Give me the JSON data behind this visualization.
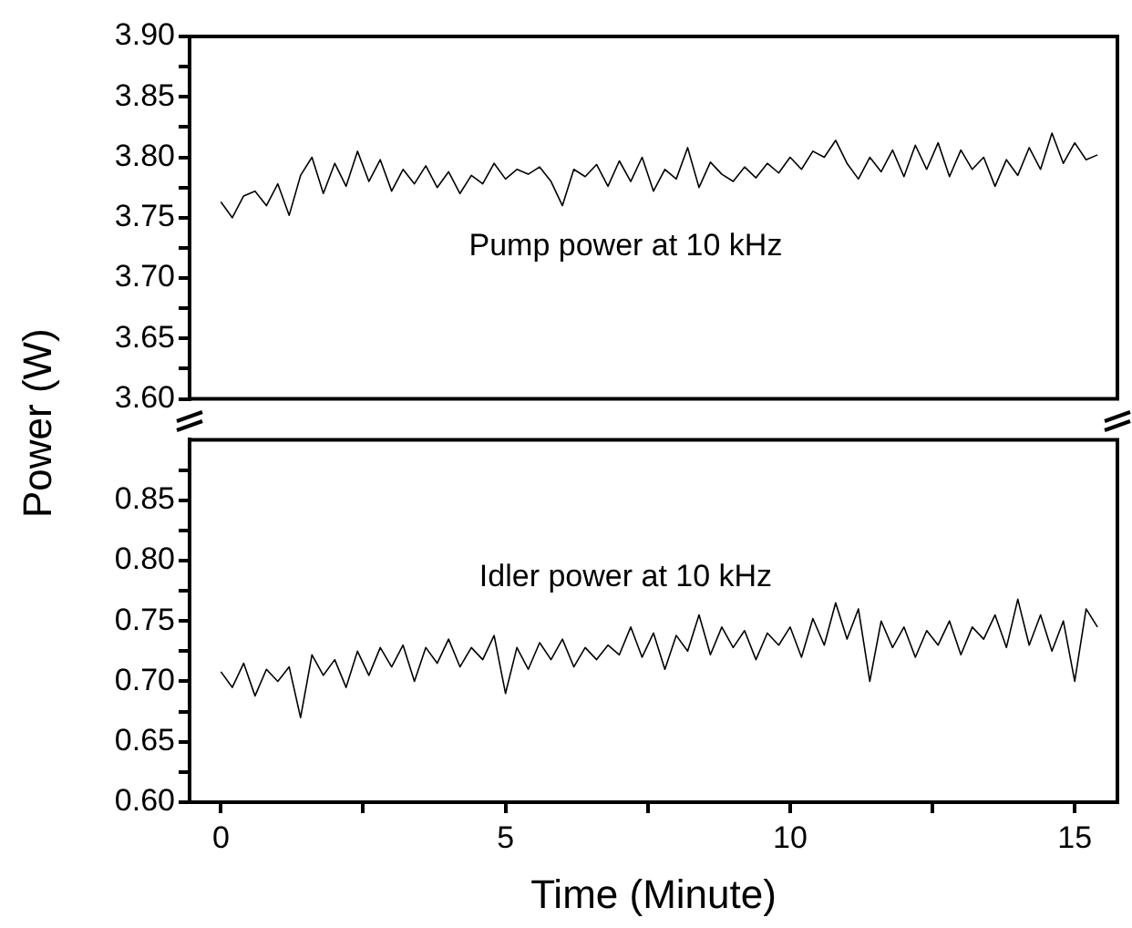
{
  "chart_data": [
    {
      "type": "line",
      "ylabel": "Power (W)",
      "xlim": [
        -0.55,
        15.75
      ],
      "ylim": [
        3.6,
        3.9
      ],
      "tick_labels": "y",
      "grid": false,
      "legend": false,
      "marker": "none",
      "line_style": "solid",
      "yticks": [
        {
          "value": 3.6,
          "label": "3.60"
        },
        {
          "value": 3.625,
          "label": null
        },
        3.65,
        {
          "value": 3.675,
          "label": null
        },
        {
          "value": 3.7,
          "label": "3.70"
        },
        {
          "value": 3.725,
          "label": null
        },
        3.75,
        {
          "value": 3.775,
          "label": null
        },
        {
          "value": 3.8,
          "label": "3.80"
        },
        {
          "value": 3.825,
          "label": null
        },
        3.85,
        {
          "value": 3.875,
          "label": null
        },
        {
          "value": 3.9,
          "label": "3.90"
        }
      ],
      "x": [
        0,
        0.2,
        0.4,
        0.6,
        0.8,
        1,
        1.2,
        1.4,
        1.6,
        1.8,
        2,
        2.2,
        2.4,
        2.6,
        2.8,
        3,
        3.2,
        3.4,
        3.6,
        3.8,
        4,
        4.2,
        4.4,
        4.6,
        4.8,
        5,
        5.2,
        5.4,
        5.6,
        5.8,
        6,
        6.2,
        6.4,
        6.6,
        6.8,
        7,
        7.2,
        7.4,
        7.6,
        7.8,
        8,
        8.2,
        8.4,
        8.6,
        8.8,
        9,
        9.2,
        9.4,
        9.6,
        9.8,
        10,
        10.2,
        10.4,
        10.6,
        10.8,
        11,
        11.2,
        11.4,
        11.6,
        11.8,
        12,
        12.2,
        12.4,
        12.6,
        12.8,
        13,
        13.2,
        13.4,
        13.6,
        13.8,
        14,
        14.2,
        14.4,
        14.6,
        14.8,
        15,
        15.2,
        15.4
      ],
      "series": [
        {
          "name": "Pump power at 10 kHz",
          "color": "#000000",
          "values": [
            3.763,
            3.75,
            3.768,
            3.772,
            3.76,
            3.778,
            3.752,
            3.785,
            3.8,
            3.77,
            3.795,
            3.776,
            3.805,
            3.78,
            3.798,
            3.772,
            3.79,
            3.778,
            3.793,
            3.775,
            3.788,
            3.77,
            3.785,
            3.778,
            3.795,
            3.782,
            3.79,
            3.786,
            3.792,
            3.78,
            3.76,
            3.79,
            3.784,
            3.794,
            3.776,
            3.797,
            3.78,
            3.8,
            3.772,
            3.79,
            3.782,
            3.808,
            3.775,
            3.796,
            3.786,
            3.78,
            3.792,
            3.783,
            3.795,
            3.787,
            3.8,
            3.79,
            3.805,
            3.8,
            3.814,
            3.795,
            3.782,
            3.8,
            3.788,
            3.806,
            3.784,
            3.81,
            3.79,
            3.812,
            3.784,
            3.806,
            3.79,
            3.8,
            3.776,
            3.798,
            3.785,
            3.808,
            3.79,
            3.82,
            3.795,
            3.812,
            3.798,
            3.802
          ]
        }
      ]
    },
    {
      "type": "line",
      "xlabel": "Time (Minute)",
      "xlim": [
        -0.55,
        15.75
      ],
      "ylim": [
        0.6,
        0.9
      ],
      "grid": false,
      "legend": false,
      "marker": "none",
      "line_style": "solid",
      "xticks": [
        0,
        {
          "value": 2.5,
          "label": null
        },
        5,
        {
          "value": 7.5,
          "label": null
        },
        10,
        {
          "value": 12.5,
          "label": null
        },
        15
      ],
      "yticks": [
        {
          "value": 0.6,
          "label": "0.60"
        },
        {
          "value": 0.625,
          "label": null
        },
        0.65,
        {
          "value": 0.675,
          "label": null
        },
        {
          "value": 0.7,
          "label": "0.70"
        },
        {
          "value": 0.725,
          "label": null
        },
        0.75,
        {
          "value": 0.775,
          "label": null
        },
        {
          "value": 0.8,
          "label": "0.80"
        },
        {
          "value": 0.825,
          "label": null
        },
        0.85,
        {
          "value": 0.875,
          "label": null
        }
      ],
      "x": [
        0,
        0.2,
        0.4,
        0.6,
        0.8,
        1,
        1.2,
        1.4,
        1.6,
        1.8,
        2,
        2.2,
        2.4,
        2.6,
        2.8,
        3,
        3.2,
        3.4,
        3.6,
        3.8,
        4,
        4.2,
        4.4,
        4.6,
        4.8,
        5,
        5.2,
        5.4,
        5.6,
        5.8,
        6,
        6.2,
        6.4,
        6.6,
        6.8,
        7,
        7.2,
        7.4,
        7.6,
        7.8,
        8,
        8.2,
        8.4,
        8.6,
        8.8,
        9,
        9.2,
        9.4,
        9.6,
        9.8,
        10,
        10.2,
        10.4,
        10.6,
        10.8,
        11,
        11.2,
        11.4,
        11.6,
        11.8,
        12,
        12.2,
        12.4,
        12.6,
        12.8,
        13,
        13.2,
        13.4,
        13.6,
        13.8,
        14,
        14.2,
        14.4,
        14.6,
        14.8,
        15,
        15.2,
        15.4
      ],
      "series": [
        {
          "name": "Idler power at 10 kHz",
          "color": "#000000",
          "values": [
            0.708,
            0.695,
            0.715,
            0.688,
            0.71,
            0.7,
            0.712,
            0.67,
            0.722,
            0.705,
            0.718,
            0.695,
            0.725,
            0.705,
            0.728,
            0.712,
            0.73,
            0.7,
            0.728,
            0.715,
            0.735,
            0.712,
            0.728,
            0.718,
            0.738,
            0.69,
            0.728,
            0.71,
            0.732,
            0.718,
            0.735,
            0.712,
            0.728,
            0.718,
            0.73,
            0.722,
            0.745,
            0.72,
            0.74,
            0.71,
            0.738,
            0.725,
            0.755,
            0.722,
            0.745,
            0.728,
            0.742,
            0.718,
            0.74,
            0.73,
            0.745,
            0.72,
            0.752,
            0.73,
            0.765,
            0.735,
            0.76,
            0.7,
            0.75,
            0.728,
            0.745,
            0.72,
            0.742,
            0.73,
            0.75,
            0.722,
            0.745,
            0.735,
            0.755,
            0.728,
            0.768,
            0.73,
            0.755,
            0.725,
            0.75,
            0.7,
            0.76,
            0.745
          ]
        }
      ]
    }
  ]
}
